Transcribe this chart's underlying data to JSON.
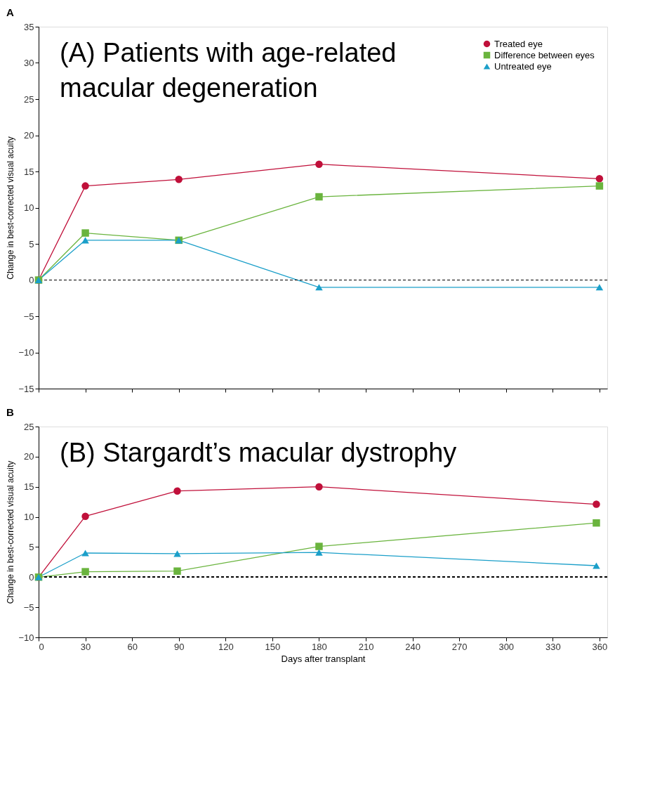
{
  "chart_data": [
    {
      "type": "line",
      "title": "A",
      "ylabel": "Change in best-corrected visual acuity",
      "annotations": [
        "(A)  Patients with age-related\n      macular degeneration"
      ],
      "x": [
        0,
        30,
        90,
        180,
        360
      ],
      "xlim": [
        0,
        365
      ],
      "xticks": [
        0,
        30,
        60,
        90,
        120,
        150,
        180,
        210,
        240,
        270,
        300,
        330,
        360
      ],
      "ylim": [
        -15,
        35
      ],
      "yticks": [
        -15,
        -10,
        -5,
        0,
        5,
        10,
        15,
        20,
        25,
        30,
        35
      ],
      "tick_labels": "y",
      "grid": false,
      "legend": "top right",
      "ref_lines": [
        {
          "axis": "y",
          "value": 0,
          "color": "#000000",
          "line_style": "dashed"
        }
      ],
      "series": [
        {
          "name": "Treated eye",
          "color": "#c0103a",
          "marker": "circle",
          "values": [
            0,
            13,
            13.9,
            16,
            14
          ]
        },
        {
          "name": "Difference between eyes",
          "color": "#6ab43e",
          "marker": "square",
          "values": [
            0,
            6.5,
            5.5,
            11.5,
            13
          ]
        },
        {
          "name": "Untreated eye",
          "color": "#1b9fc9",
          "marker": "triangle",
          "values": [
            0,
            5.5,
            5.5,
            -1,
            -1
          ]
        }
      ]
    },
    {
      "type": "line",
      "title": "B",
      "xlabel": "Days after transplant",
      "ylabel": "Change in best-corrected visual acuity",
      "annotations": [
        "(B)  Stargardt’s macular dystrophy"
      ],
      "x": [
        0,
        30,
        89,
        180,
        358
      ],
      "xlim": [
        0,
        365
      ],
      "xticks": [
        0,
        30,
        60,
        90,
        120,
        150,
        180,
        210,
        240,
        270,
        300,
        330,
        360
      ],
      "ylim": [
        -10,
        25
      ],
      "yticks": [
        -10,
        -5,
        0,
        5,
        10,
        15,
        20,
        25
      ],
      "grid": false,
      "ref_lines": [
        {
          "axis": "y",
          "value": 0,
          "color": "#000000",
          "line_style": "dashed"
        }
      ],
      "series": [
        {
          "color": "#c0103a",
          "marker": "circle",
          "values": [
            0,
            10.1,
            14.3,
            15,
            12.1
          ]
        },
        {
          "color": "#6ab43e",
          "marker": "square",
          "values": [
            0,
            0.9,
            1,
            5.1,
            9
          ]
        },
        {
          "color": "#1b9fc9",
          "marker": "triangle",
          "values": [
            0,
            4,
            3.9,
            4.1,
            1.9
          ]
        }
      ]
    }
  ]
}
